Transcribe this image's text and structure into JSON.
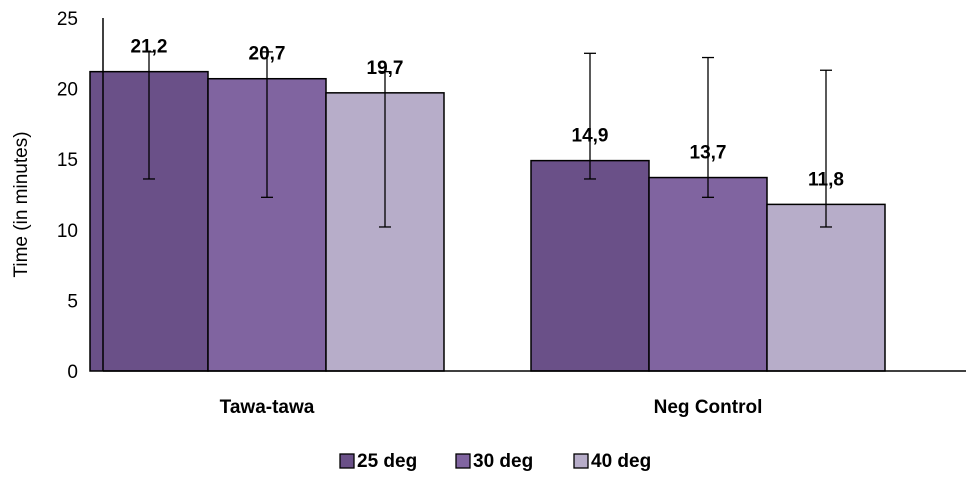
{
  "chart_data": {
    "type": "bar",
    "categories": [
      "Tawa-tawa",
      "Neg Control"
    ],
    "series": [
      {
        "name": "25 deg",
        "color": "#6a5088",
        "values": [
          21.2,
          14.9
        ],
        "labels": [
          "21,2",
          "14,9"
        ],
        "error_high": [
          22.6,
          22.5
        ],
        "error_low": [
          13.6,
          13.6
        ]
      },
      {
        "name": "30 deg",
        "color": "#8064a0",
        "values": [
          20.7,
          13.7
        ],
        "labels": [
          "20,7",
          "13,7"
        ],
        "error_high": [
          22.6,
          22.2
        ],
        "error_low": [
          12.3,
          12.3
        ]
      },
      {
        "name": "40 deg",
        "color": "#b7adc9",
        "values": [
          19.7,
          11.8
        ],
        "labels": [
          "19,7",
          "11,8"
        ],
        "error_high": [
          21.2,
          21.3
        ],
        "error_low": [
          10.2,
          10.2
        ]
      }
    ],
    "title": "",
    "xlabel": "",
    "ylabel": "Time (in minutes)",
    "ylim": [
      0,
      25
    ],
    "yticks": [
      0,
      5,
      10,
      15,
      20,
      25
    ],
    "ytick_labels": [
      "0",
      "5",
      "10",
      "15",
      "20",
      "25"
    ],
    "grid": false,
    "legend_position": "bottom"
  }
}
